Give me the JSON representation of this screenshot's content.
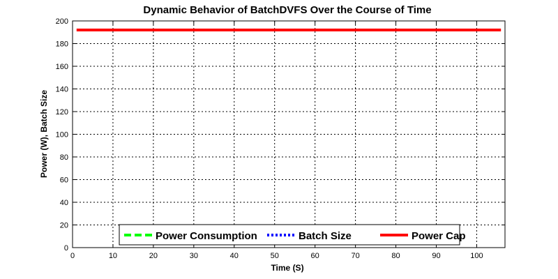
{
  "chart_data": {
    "type": "line",
    "title": "Dynamic Behavior of BatchDVFS Over the Course of Time",
    "xlabel": "Time (S)",
    "ylabel": "Power (W), Batch Size",
    "xlim": [
      0,
      107
    ],
    "ylim": [
      0,
      200
    ],
    "xticks": [
      0,
      10,
      20,
      30,
      40,
      50,
      60,
      70,
      80,
      90,
      100
    ],
    "yticks": [
      0,
      20,
      40,
      60,
      80,
      100,
      120,
      140,
      160,
      180,
      200
    ],
    "grid": true,
    "legend_position": "bottom-center",
    "series": [
      {
        "name": "Power Consumption",
        "color": "#00ff00",
        "style": "dashed",
        "x": [],
        "y": []
      },
      {
        "name": "Batch Size",
        "color": "#0000ff",
        "style": "dotted",
        "x": [],
        "y": []
      },
      {
        "name": "Power Cap",
        "color": "#ff0000",
        "style": "solid",
        "x": [
          1,
          106
        ],
        "y": [
          192,
          192
        ]
      }
    ]
  }
}
